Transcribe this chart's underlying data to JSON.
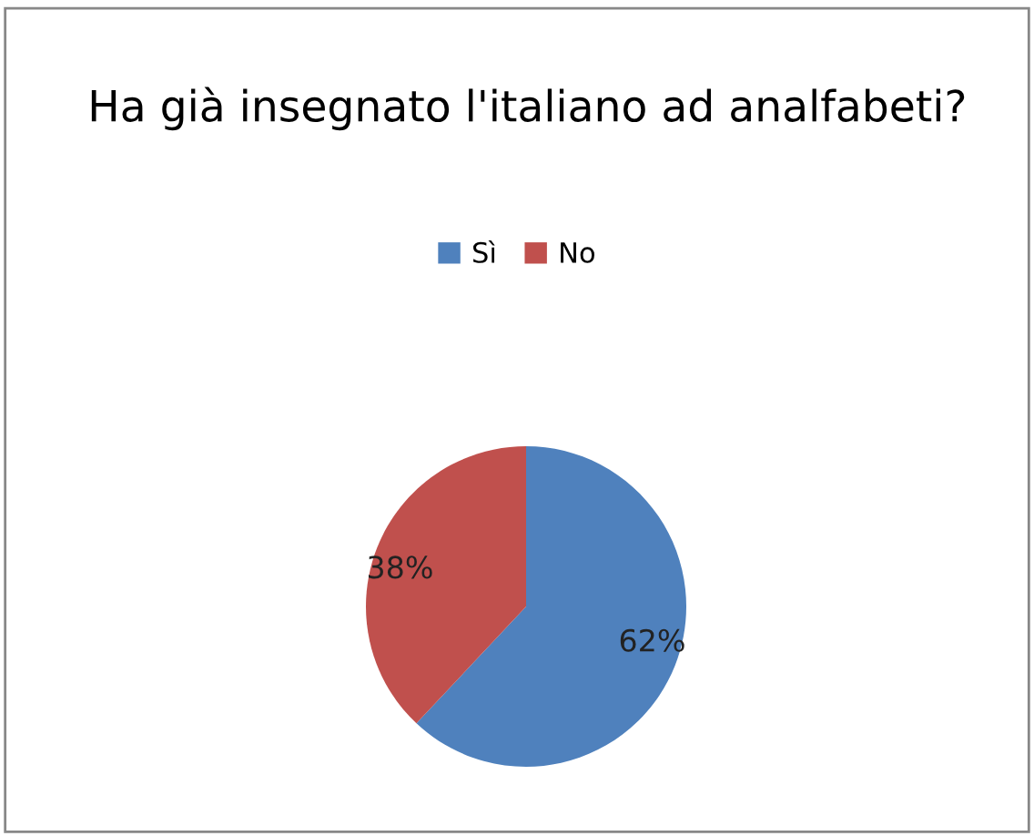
{
  "chart_data": {
    "type": "pie",
    "title": "Ha già insegnato l'italiano ad analfabeti?",
    "categories": [
      "Sì",
      "No"
    ],
    "values": [
      62,
      38
    ],
    "colors": [
      "#4f81bd",
      "#c0504d"
    ],
    "value_labels": [
      "62%",
      "38%"
    ],
    "legend": "top"
  }
}
